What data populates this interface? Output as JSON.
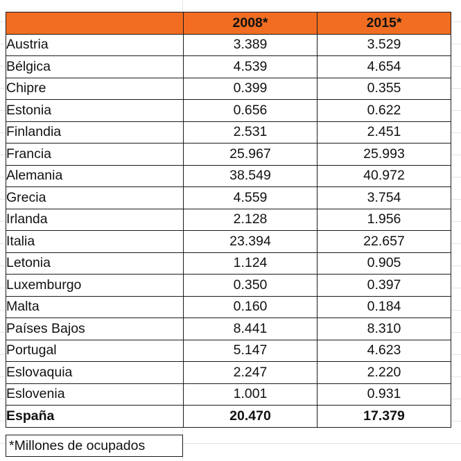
{
  "table": {
    "header": [
      "",
      "2008*",
      "2015*"
    ],
    "rows": [
      {
        "country": "Austria",
        "y2008": "3.389",
        "y2015": "3.529"
      },
      {
        "country": "Bélgica",
        "y2008": "4.539",
        "y2015": "4.654"
      },
      {
        "country": "Chipre",
        "y2008": "0.399",
        "y2015": "0.355"
      },
      {
        "country": "Estonia",
        "y2008": "0.656",
        "y2015": "0.622"
      },
      {
        "country": "Finlandia",
        "y2008": "2.531",
        "y2015": "2.451"
      },
      {
        "country": "Francia",
        "y2008": "25.967",
        "y2015": "25.993"
      },
      {
        "country": "Alemania",
        "y2008": "38.549",
        "y2015": "40.972"
      },
      {
        "country": "Grecia",
        "y2008": "4.559",
        "y2015": "3.754"
      },
      {
        "country": "Irlanda",
        "y2008": "2.128",
        "y2015": "1.956"
      },
      {
        "country": "Italia",
        "y2008": "23.394",
        "y2015": "22.657"
      },
      {
        "country": "Letonia",
        "y2008": "1.124",
        "y2015": "0.905"
      },
      {
        "country": "Luxemburgo",
        "y2008": "0.350",
        "y2015": "0.397"
      },
      {
        "country": "Malta",
        "y2008": "0.160",
        "y2015": "0.184"
      },
      {
        "country": "Países Bajos",
        "y2008": "8.441",
        "y2015": "8.310"
      },
      {
        "country": "Portugal",
        "y2008": "5.147",
        "y2015": "4.623"
      },
      {
        "country": "Eslovaquia",
        "y2008": "2.247",
        "y2015": "2.220"
      },
      {
        "country": "Eslovenia",
        "y2008": "1.001",
        "y2015": "0.931"
      }
    ],
    "total": {
      "country": "España",
      "y2008": "20.470",
      "y2015": "17.379"
    }
  },
  "footnote": "*Millones de ocupados",
  "colors": {
    "header_fill": "#f26d21",
    "border": "#1a1a1a"
  }
}
